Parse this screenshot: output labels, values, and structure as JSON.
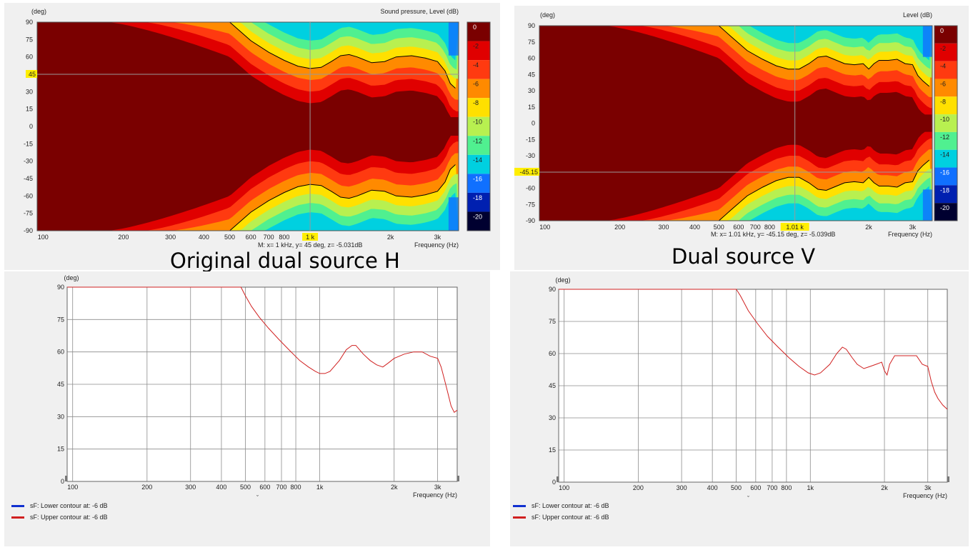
{
  "captions": {
    "left": "Original dual source H",
    "right": "Dual source V"
  },
  "contour_levels": [
    "0",
    "-2",
    "-4",
    "-6",
    "-8",
    "-10",
    "-12",
    "-14",
    "-16",
    "-18",
    "-20"
  ],
  "contour_colors": [
    "#7a0000",
    "#e00000",
    "#ff3a10",
    "#ff8a00",
    "#ffe000",
    "#b8f050",
    "#50f090",
    "#00d0e0",
    "#1070ff",
    "#0020b0",
    "#000030"
  ],
  "colors": {
    "line": "#d02020",
    "lower_legend": "#1030d0",
    "upper_legend": "#d02020"
  },
  "chart_data": [
    {
      "id": "H-map",
      "type": "heatmap",
      "title": "Sound pressure, Level  (dB)",
      "ylabel": "(deg)",
      "xlabel": "Frequency  (Hz)",
      "x_ticks": [
        "100",
        "200",
        "300",
        "400",
        "500",
        "600",
        "700",
        "800",
        "1k",
        "2k",
        "3k"
      ],
      "x_tick_values": [
        100,
        200,
        300,
        400,
        500,
        600,
        700,
        800,
        1000,
        2000,
        3000
      ],
      "y_ticks": [
        "90",
        "75",
        "60",
        "45",
        "30",
        "15",
        "0",
        "-15",
        "-30",
        "-45",
        "-60",
        "-75",
        "-90"
      ],
      "xlim": [
        95,
        3600
      ],
      "ylim": [
        -90,
        90
      ],
      "cursor": {
        "x": 1000,
        "y": 45,
        "x_label": "1 k",
        "y_label": "45"
      },
      "readout": "M:  x= 1 kHz,  y= 45 deg, z= -5.031dB",
      "contour_6db_upper": [
        [
          500,
          90
        ],
        [
          600,
          74
        ],
        [
          700,
          64
        ],
        [
          800,
          57
        ],
        [
          900,
          52
        ],
        [
          1000,
          50
        ],
        [
          1100,
          51
        ],
        [
          1200,
          56
        ],
        [
          1300,
          61
        ],
        [
          1400,
          62
        ],
        [
          1500,
          60
        ],
        [
          1700,
          55
        ],
        [
          1900,
          56
        ],
        [
          2100,
          60
        ],
        [
          2400,
          61
        ],
        [
          2700,
          59
        ],
        [
          3000,
          56
        ],
        [
          3200,
          48
        ],
        [
          3350,
          37
        ],
        [
          3500,
          33
        ]
      ]
    },
    {
      "id": "V-map",
      "type": "heatmap",
      "title": "Level  (dB)",
      "ylabel": "(deg)",
      "xlabel": "Frequency  (Hz)",
      "x_ticks": [
        "100",
        "200",
        "300",
        "400",
        "500",
        "600",
        "700",
        "800",
        "1k",
        "2k",
        "3k"
      ],
      "x_tick_values": [
        100,
        200,
        300,
        400,
        500,
        600,
        700,
        800,
        1000,
        2000,
        3000
      ],
      "y_ticks": [
        "90",
        "75",
        "60",
        "45",
        "30",
        "15",
        "0",
        "-15",
        "-30",
        "-45",
        "-60",
        "-75",
        "-90"
      ],
      "xlim": [
        95,
        3600
      ],
      "ylim": [
        -90,
        90
      ],
      "cursor": {
        "x": 1010,
        "y": -45.15,
        "x_label": "1.01 k",
        "y_label": "-45.15"
      },
      "readout": "M:  x= 1.01 kHz,  y= -45.15 deg, z= -5.039dB",
      "contour_6db_upper": [
        [
          500,
          90
        ],
        [
          560,
          80
        ],
        [
          650,
          67
        ],
        [
          750,
          59
        ],
        [
          850,
          53
        ],
        [
          950,
          50
        ],
        [
          1050,
          50
        ],
        [
          1150,
          55
        ],
        [
          1250,
          61
        ],
        [
          1350,
          62
        ],
        [
          1450,
          59
        ],
        [
          1600,
          55
        ],
        [
          1750,
          54
        ],
        [
          1900,
          55
        ],
        [
          2000,
          50
        ],
        [
          2100,
          55
        ],
        [
          2200,
          58
        ],
        [
          2400,
          58
        ],
        [
          2600,
          59
        ],
        [
          2800,
          55
        ],
        [
          3000,
          54
        ],
        [
          3150,
          44
        ],
        [
          3300,
          39
        ],
        [
          3500,
          34
        ]
      ]
    },
    {
      "id": "H-line",
      "type": "line",
      "ylabel": "(deg)",
      "xlabel": "Frequency  (Hz)",
      "x_ticks": [
        "100",
        "200",
        "300",
        "400",
        "500",
        "600",
        "700",
        "800",
        "1k",
        "2k",
        "3k"
      ],
      "x_tick_values": [
        100,
        200,
        300,
        400,
        500,
        600,
        700,
        800,
        1000,
        2000,
        3000
      ],
      "y_ticks": [
        "90",
        "75",
        "60",
        "45",
        "30",
        "15",
        "0"
      ],
      "xlim": [
        95,
        3600
      ],
      "ylim": [
        0,
        90
      ],
      "series": [
        {
          "name": "sF: Upper contour at: -6 dB",
          "x": [
            95,
            480,
            500,
            530,
            570,
            620,
            680,
            750,
            830,
            900,
            960,
            1000,
            1050,
            1100,
            1200,
            1280,
            1350,
            1400,
            1500,
            1600,
            1700,
            1800,
            1900,
            2000,
            2200,
            2400,
            2600,
            2800,
            3000,
            3100,
            3200,
            3300,
            3400,
            3500,
            3600
          ],
          "y": [
            90,
            90,
            86,
            81,
            76,
            71,
            66,
            61,
            56,
            53,
            51,
            50,
            50,
            51,
            56,
            61,
            63,
            63,
            59,
            56,
            54,
            53,
            55,
            57,
            59,
            60,
            60,
            58,
            57,
            53,
            47,
            41,
            35,
            32,
            33
          ]
        }
      ],
      "legend": [
        {
          "label": "sF: Lower contour at: -6 dB"
        },
        {
          "label": "sF: Upper contour at: -6 dB"
        }
      ]
    },
    {
      "id": "V-line",
      "type": "line",
      "ylabel": "(deg)",
      "xlabel": "Frequency  (Hz)",
      "x_ticks": [
        "100",
        "200",
        "300",
        "400",
        "500",
        "600",
        "700",
        "800",
        "1k",
        "2k",
        "3k"
      ],
      "x_tick_values": [
        100,
        200,
        300,
        400,
        500,
        600,
        700,
        800,
        1000,
        2000,
        3000
      ],
      "y_ticks": [
        "90",
        "75",
        "60",
        "45",
        "30",
        "15",
        "0"
      ],
      "xlim": [
        95,
        3600
      ],
      "ylim": [
        0,
        90
      ],
      "series": [
        {
          "name": "sF: Upper contour at: -6 dB",
          "x": [
            95,
            500,
            520,
            560,
            610,
            670,
            740,
            820,
            900,
            980,
            1040,
            1100,
            1200,
            1280,
            1350,
            1400,
            1480,
            1550,
            1650,
            1750,
            1850,
            1950,
            2000,
            2050,
            2100,
            2200,
            2350,
            2500,
            2700,
            2850,
            3000,
            3100,
            3200,
            3300,
            3450,
            3600
          ],
          "y": [
            90,
            90,
            87,
            80,
            74,
            68,
            63,
            58,
            54,
            51,
            50,
            51,
            55,
            60,
            63,
            62,
            58,
            55,
            53,
            54,
            55,
            56,
            52,
            50,
            55,
            59,
            59,
            59,
            59,
            55,
            54,
            47,
            42,
            39,
            36,
            34
          ]
        }
      ],
      "legend": [
        {
          "label": "sF: Lower contour at: -6 dB"
        },
        {
          "label": "sF: Upper contour at: -6 dB"
        }
      ]
    }
  ]
}
